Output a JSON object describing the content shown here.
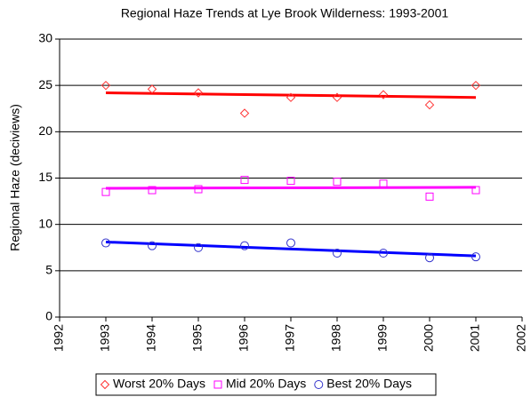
{
  "chart_data": {
    "type": "scatter",
    "title": "Regional Haze Trends at Lye Brook Wilderness: 1993-2001",
    "y_label": "Regional Haze (deciviews)",
    "x": [
      1993,
      1994,
      1995,
      1996,
      1997,
      1998,
      1999,
      2000,
      2001
    ],
    "series": [
      {
        "name": "Worst 20% Days",
        "color": "#ff3333",
        "line_color": "#ff0000",
        "marker": "diamond",
        "values": [
          25.0,
          24.6,
          24.2,
          22.0,
          23.7,
          23.7,
          24.0,
          22.9,
          25.0
        ],
        "trend_x": [
          1993,
          2001
        ],
        "trend": [
          24.2,
          23.7
        ]
      },
      {
        "name": "Mid 20% Days",
        "color": "#ff00ff",
        "line_color": "#ff00ff",
        "marker": "square",
        "values": [
          13.5,
          13.7,
          13.8,
          14.8,
          14.7,
          14.6,
          14.4,
          13.0,
          13.7
        ],
        "trend_x": [
          1993,
          2001
        ],
        "trend": [
          13.9,
          14.0
        ]
      },
      {
        "name": "Best 20% Days",
        "color": "#3333cc",
        "line_color": "#0000ff",
        "marker": "circle",
        "values": [
          8.0,
          7.7,
          7.5,
          7.7,
          8.0,
          6.9,
          6.9,
          6.4,
          6.5
        ],
        "trend_x": [
          1993,
          2001
        ],
        "trend": [
          8.1,
          6.6
        ]
      }
    ],
    "xlim": [
      1992,
      2002
    ],
    "xticks": [
      1992,
      1993,
      1994,
      1995,
      1996,
      1997,
      1998,
      1999,
      2000,
      2001,
      2002
    ],
    "ylim": [
      0,
      30
    ],
    "yticks": [
      0,
      5,
      10,
      15,
      20,
      25,
      30
    ],
    "grid": true,
    "legend": "bottom"
  }
}
